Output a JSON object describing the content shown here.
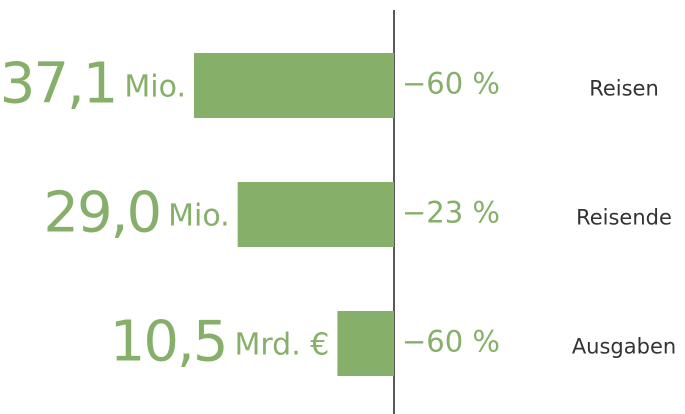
{
  "chart_data": {
    "type": "bar",
    "orientation": "horizontal",
    "direction": "leftward",
    "categories": [
      "Reisen",
      "Reisende",
      "Ausgaben"
    ],
    "values": [
      37.1,
      29.0,
      10.5
    ],
    "value_labels": [
      "37,1",
      "29,0",
      "10,5"
    ],
    "units": [
      "Mio.",
      "Mio.",
      "Mrd. €"
    ],
    "changes": [
      -60,
      -23,
      -60
    ],
    "change_labels": [
      "−60 %",
      "−23 %",
      "−60 %"
    ],
    "color": "#86b06a",
    "xlim": [
      0,
      40
    ]
  }
}
